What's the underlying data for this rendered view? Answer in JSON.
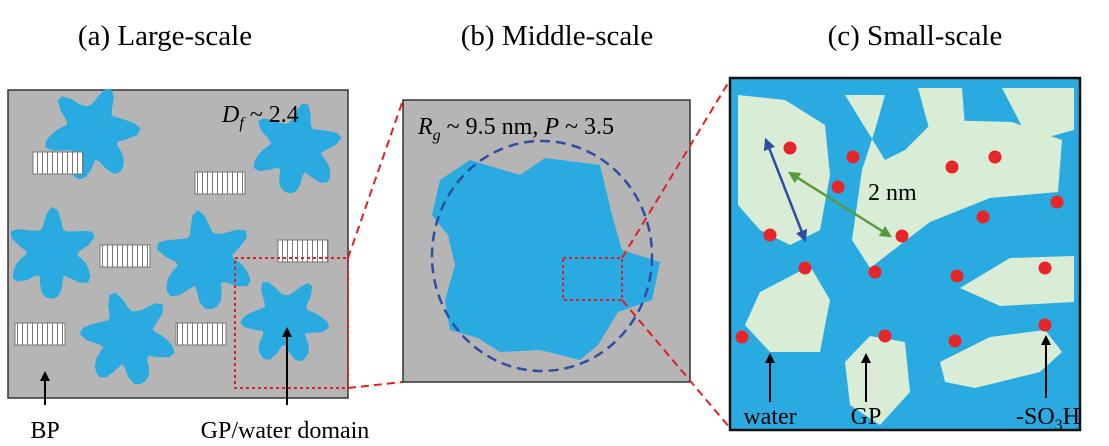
{
  "panels": [
    {
      "title": "(a) Large-scale",
      "annotation": {
        "symbol": "D",
        "subscript": "f",
        "text": " ~ 2.4"
      },
      "labels": [
        "BP",
        "GP/water domain"
      ]
    },
    {
      "title": "(b) Middle-scale",
      "annotation": {
        "symbol": "R",
        "subscript": "g",
        "text": " ~ 9.5 nm, ",
        "symbol2": "P",
        "text2": " ~ 3.5"
      }
    },
    {
      "title": "(c) Small-scale",
      "annotation": {
        "text": "2 nm"
      },
      "labels": [
        "water",
        "GP"
      ],
      "group": {
        "prefix": "-SO",
        "subscript": "3",
        "suffix": "H"
      }
    }
  ]
}
